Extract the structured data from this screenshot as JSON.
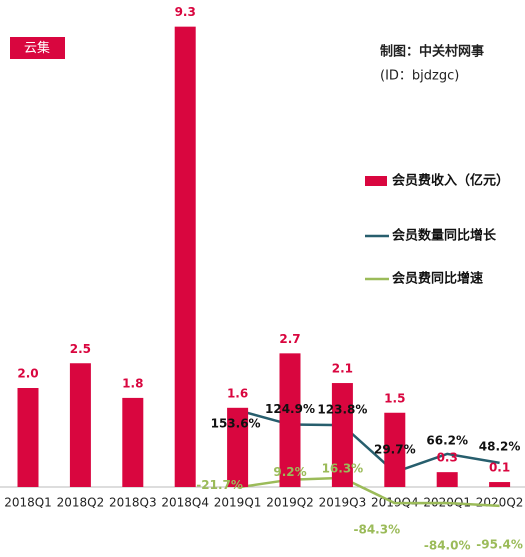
{
  "badge": "云集",
  "credit": "制图：中关村网事",
  "credit_id": "(ID：bjdzgc)",
  "chart_data": {
    "type": "bar",
    "categories": [
      "2018Q1",
      "2018Q2",
      "2018Q3",
      "2018Q4",
      "2019Q1",
      "2019Q2",
      "2019Q3",
      "2019Q4",
      "2020Q1",
      "2020Q2"
    ],
    "series": [
      {
        "name": "会员费收入（亿元）",
        "type": "bar",
        "color": "#d9063f",
        "values": [
          2.0,
          2.5,
          1.8,
          9.3,
          1.6,
          2.7,
          2.1,
          1.5,
          0.3,
          0.1
        ],
        "value_labels": [
          "2.0",
          "2.5",
          "1.8",
          "9.3",
          "1.6",
          "2.7",
          "2.1",
          "1.5",
          "0.3",
          "0.1"
        ]
      },
      {
        "name": "会员数量同比增长",
        "type": "line",
        "axis": "y2",
        "color": "#275e6d",
        "values": [
          null,
          null,
          null,
          null,
          153.6,
          124.9,
          123.8,
          29.7,
          66.2,
          48.2
        ],
        "value_labels": [
          null,
          null,
          null,
          null,
          "153.6%",
          "124.9%",
          "123.8%",
          "29.7%",
          "66.2%",
          "48.2%"
        ]
      },
      {
        "name": "会员费同比增速",
        "type": "line",
        "axis": "y2",
        "color": "#9bbb59",
        "values": [
          null,
          null,
          null,
          null,
          -21.7,
          9.2,
          16.3,
          -84.3,
          -84.0,
          -95.4
        ],
        "value_labels": [
          null,
          null,
          null,
          null,
          "-21.7%",
          "9.2%",
          "16.3%",
          "-84.3%",
          "-84.0%",
          "-95.4%"
        ]
      }
    ]
  }
}
